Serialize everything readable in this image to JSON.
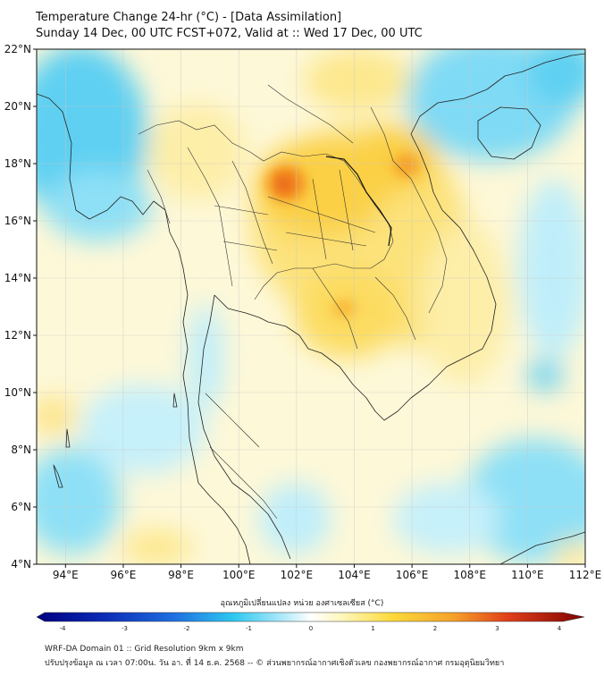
{
  "header": {
    "title": "Temperature Change 24-hr (°C) - [Data Assimilation]",
    "subtitle": "Sunday 14 Dec, 00 UTC FCST+072, Valid at :: Wed 17 Dec, 00 UTC"
  },
  "map": {
    "lon_range": [
      93,
      112
    ],
    "lat_range": [
      4,
      22
    ],
    "lon_ticks": [
      "94°E",
      "96°E",
      "98°E",
      "100°E",
      "102°E",
      "104°E",
      "106°E",
      "108°E",
      "110°E",
      "112°E"
    ],
    "lat_ticks": [
      "4°N",
      "6°N",
      "8°N",
      "10°N",
      "12°N",
      "14°N",
      "16°N",
      "18°N",
      "20°N",
      "22°N"
    ]
  },
  "colorbar": {
    "title": "อุณหภูมิเปลี่ยนแปลง หน่วย องศาเซลเซียส (°C)",
    "range": [
      -4,
      4
    ],
    "labels": [
      "-4",
      "-3",
      "-2",
      "-1",
      "0",
      "1",
      "2",
      "3",
      "4"
    ],
    "colors": {
      "dark_blue": "#00007f",
      "blue": "#1f4fd6",
      "cyan": "#2ec8f0",
      "light_cyan": "#bfeefa",
      "white": "#ffffff",
      "light_yellow": "#fff6b8",
      "yellow": "#fcd93a",
      "orange": "#f38a1e",
      "red": "#d41818",
      "dark_red": "#7f0000"
    }
  },
  "footer": {
    "line1": "WRF-DA Domain 01 :: Grid Resolution 9km x 9km",
    "line2": "ปรับปรุงข้อมูล ณ เวลา 07:00น. วัน อา. ที่ 14 ธ.ค. 2568 -- © ส่วนพยากรณ์อากาศเชิงตัวเลข กองพยากรณ์อากาศ กรมอุตุนิยมวิทยา"
  }
}
